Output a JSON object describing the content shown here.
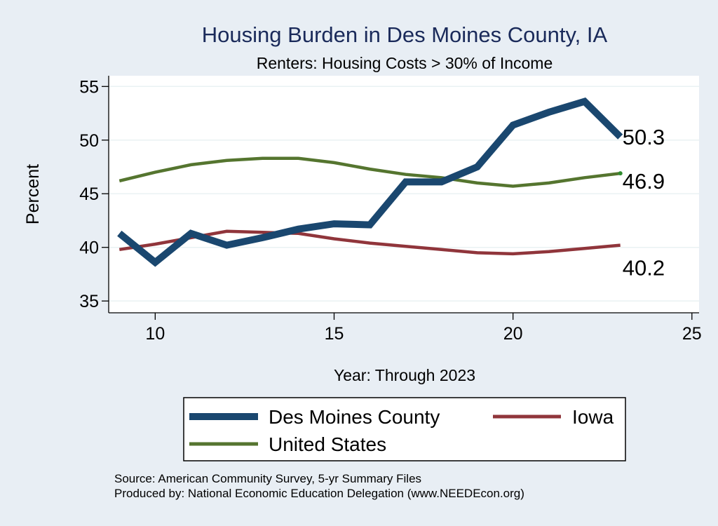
{
  "chart_data": {
    "type": "line",
    "title": "Housing Burden in Des Moines County, IA",
    "subtitle": "Renters: Housing Costs > 30% of Income",
    "xlabel": "Year: Through 2023",
    "ylabel": "Percent",
    "xlim": [
      8.7,
      25.2
    ],
    "ylim": [
      33.9,
      56.0
    ],
    "xticks": [
      10,
      15,
      20,
      25
    ],
    "yticks": [
      35,
      40,
      45,
      50,
      55
    ],
    "grid": true,
    "legend_position": "bottom",
    "series": [
      {
        "name": "Des Moines County",
        "color": "#1a476f",
        "x": [
          9,
          10,
          11,
          12,
          13,
          14,
          15,
          16,
          17,
          18,
          19,
          20,
          21,
          22,
          23
        ],
        "values": [
          41.3,
          38.6,
          41.3,
          40.2,
          40.9,
          41.7,
          42.2,
          42.1,
          46.1,
          46.1,
          47.5,
          51.4,
          52.6,
          53.6,
          50.3
        ],
        "end_label": "50.3"
      },
      {
        "name": "Iowa",
        "color": "#90353b",
        "x": [
          9,
          10,
          11,
          12,
          13,
          14,
          15,
          16,
          17,
          18,
          19,
          20,
          21,
          22,
          23
        ],
        "values": [
          39.8,
          40.3,
          40.9,
          41.5,
          41.4,
          41.3,
          40.8,
          40.4,
          40.1,
          39.8,
          39.5,
          39.4,
          39.6,
          39.9,
          40.2
        ],
        "end_label": "40.2"
      },
      {
        "name": "United States",
        "color": "#55752f",
        "x": [
          9,
          10,
          11,
          12,
          13,
          14,
          15,
          16,
          17,
          18,
          19,
          20,
          21,
          22,
          23
        ],
        "values": [
          46.2,
          47.0,
          47.7,
          48.1,
          48.3,
          48.3,
          47.9,
          47.3,
          46.8,
          46.5,
          46.0,
          45.7,
          46.0,
          46.5,
          46.9
        ],
        "end_label": "46.9"
      }
    ],
    "legend": [
      "Des Moines County",
      "Iowa",
      "United States"
    ],
    "notes": [
      "Source: American Community Survey, 5-yr Summary Files",
      "Produced by: National Economic Education Delegation (www.NEEDEcon.org)"
    ]
  }
}
